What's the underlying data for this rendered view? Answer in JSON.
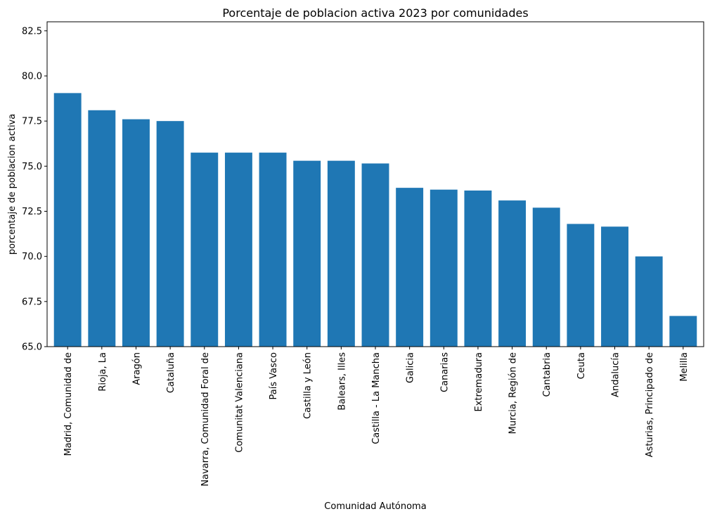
{
  "chart_data": {
    "type": "bar",
    "title": "Porcentaje de poblacion activa 2023 por comunidades",
    "xlabel": "Comunidad Autónoma",
    "ylabel": "porcentaje de poblacion activa",
    "ylim": [
      65.0,
      83.0
    ],
    "yticks": [
      "65.0",
      "67.5",
      "70.0",
      "72.5",
      "75.0",
      "77.5",
      "80.0",
      "82.5"
    ],
    "grid": false,
    "bar_color": "#1f77b4",
    "categories": [
      "Madrid, Comunidad de",
      "Rioja, La",
      "Aragón",
      "Cataluña",
      "Navarra, Comunidad Foral de",
      "Comunitat Valenciana",
      "País Vasco",
      "Castilla y León",
      "Balears, Illes",
      "Castilla - La Mancha",
      "Galicia",
      "Canarias",
      "Extremadura",
      "Murcia, Región de",
      "Cantabria",
      "Ceuta",
      "Andalucía",
      "Asturias, Principado de",
      "Melilla"
    ],
    "values": [
      79.05,
      78.1,
      77.6,
      77.5,
      75.75,
      75.75,
      75.75,
      75.3,
      75.3,
      75.15,
      73.8,
      73.7,
      73.65,
      73.1,
      72.7,
      71.8,
      71.65,
      70.0,
      66.7
    ]
  }
}
